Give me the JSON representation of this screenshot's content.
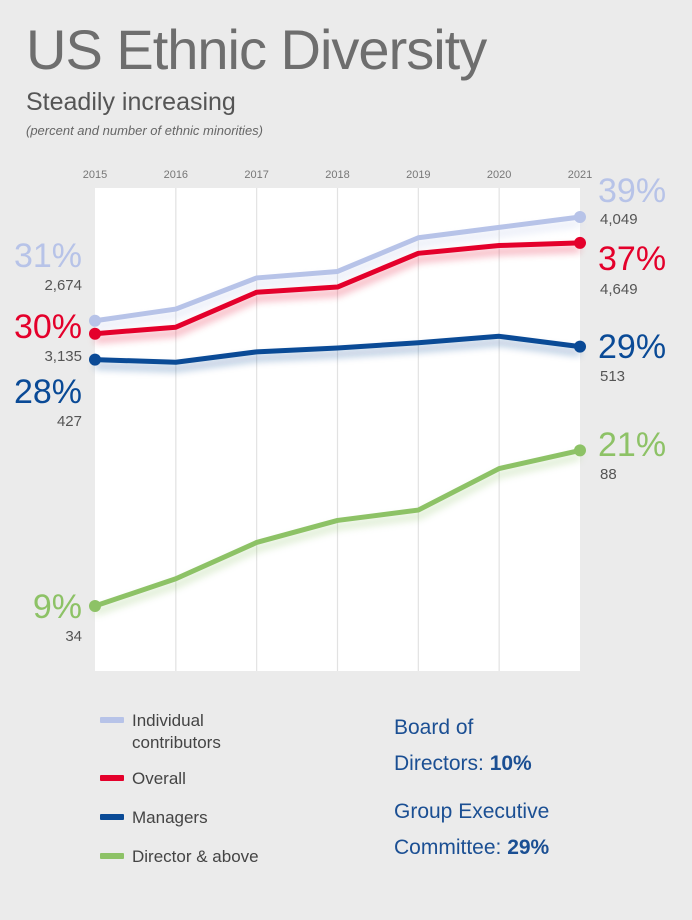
{
  "header": {
    "title": "US Ethnic Diversity",
    "subtitle": "Steadily increasing",
    "note": "(percent and number of ethnic minorities)"
  },
  "chart_data": {
    "type": "line",
    "title": "US Ethnic Diversity",
    "x": [
      "2015",
      "2016",
      "2017",
      "2018",
      "2019",
      "2020",
      "2021"
    ],
    "ylim": [
      7,
      40
    ],
    "grid": true,
    "series": [
      {
        "key": "ic",
        "name": "Individual contributors",
        "color": "#b7c3e8",
        "values": [
          31,
          31.9,
          34.3,
          34.8,
          37.4,
          38.2,
          39
        ],
        "start_pct": "31%",
        "start_count": "2,674",
        "end_pct": "39%",
        "end_count": "4,049"
      },
      {
        "key": "overall",
        "name": "Overall",
        "color": "#e4002b",
        "values": [
          30,
          30.5,
          33.2,
          33.6,
          36.2,
          36.8,
          37
        ],
        "start_pct": "30%",
        "start_count": "3,135",
        "end_pct": "37%",
        "end_count": "4,649"
      },
      {
        "key": "managers",
        "name": "Managers",
        "color": "#0a4a96",
        "values": [
          28,
          27.8,
          28.6,
          28.9,
          29.3,
          29.8,
          29
        ],
        "start_pct": "28%",
        "start_count": "427",
        "end_pct": "29%",
        "end_count": "513"
      },
      {
        "key": "director",
        "name": "Director & above",
        "color": "#8dc266",
        "values": [
          9,
          11.1,
          13.9,
          15.6,
          16.4,
          19.6,
          21
        ],
        "start_pct": "9%",
        "start_count": "34",
        "end_pct": "21%",
        "end_count": "88"
      }
    ]
  },
  "legend": {
    "items": [
      {
        "label": "Individual contributors",
        "color": "#b7c3e8"
      },
      {
        "label": "Overall",
        "color": "#e4002b"
      },
      {
        "label": "Managers",
        "color": "#0a4a96"
      },
      {
        "label": "Director & above",
        "color": "#8dc266"
      }
    ]
  },
  "board": {
    "directors_label": "Board of",
    "directors_label2": "Directors:",
    "directors_value": "10%",
    "gec_label": "Group Executive",
    "gec_label2": "Committee:",
    "gec_value": "29%"
  }
}
